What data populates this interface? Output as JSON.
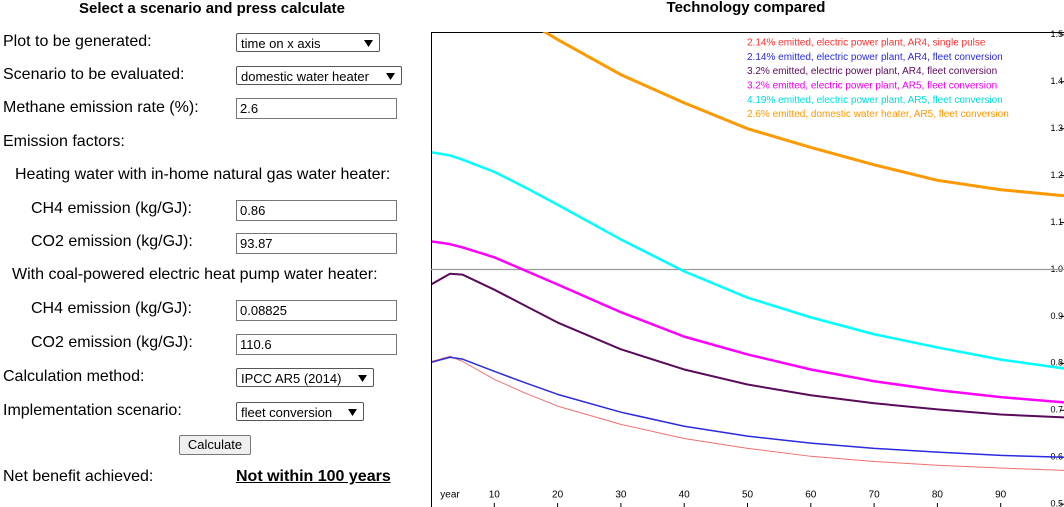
{
  "form": {
    "title": "Select a scenario and press calculate",
    "fields": [
      {
        "label": "Plot to be generated:",
        "value": "time on x axis"
      },
      {
        "label": "Scenario to be evaluated:",
        "value": "domestic water heater"
      },
      {
        "label": "Methane emission rate (%):",
        "value": "2.6"
      }
    ],
    "section": "Emission factors:",
    "subsections": [
      {
        "title": "Heating water with in-home natural gas water heater:",
        "fields": [
          {
            "label": "CH4 emission (kg/GJ):",
            "value": "0.86"
          },
          {
            "label": "CO2 emission (kg/GJ):",
            "value": "93.87"
          }
        ]
      },
      {
        "title": "With coal-powered electric heat pump water heater:",
        "fields": [
          {
            "label": "CH4 emission (kg/GJ):",
            "value": "0.08825"
          },
          {
            "label": "CO2 emission (kg/GJ):",
            "value": "110.6"
          }
        ]
      }
    ],
    "method": {
      "label": "Calculation method:",
      "value": "IPCC AR5 (2014)"
    },
    "implementation": {
      "label": "Implementation scenario:",
      "value": "fleet conversion"
    },
    "button": "Calculate",
    "result": {
      "label": "Net benefit achieved:",
      "value": "Not within 100 years"
    }
  },
  "chart_data": {
    "type": "line",
    "title": "Technology compared",
    "x_label": "year",
    "x": [
      0,
      3,
      5,
      10,
      15,
      20,
      30,
      40,
      50,
      60,
      70,
      80,
      90,
      100
    ],
    "xlim": [
      0,
      100
    ],
    "xticks": [
      10,
      20,
      30,
      40,
      50,
      60,
      70,
      80,
      90
    ],
    "ylim": [
      0.494,
      1.506
    ],
    "yticks": [
      0.5,
      0.6,
      0.7,
      0.8,
      0.9,
      {
        "value": 1,
        "label": "1.0"
      },
      1.1,
      1.2,
      1.3,
      1.4,
      1.5
    ],
    "reference_line": {
      "value": 1,
      "color": "#999999"
    },
    "legend": "upper right",
    "series": [
      {
        "name": "2.14% emitted, electric power plant, AR4, single pulse",
        "color": "#f07070",
        "legend_color": "#ff3030",
        "line_width": 1,
        "values": [
          0.804,
          0.815,
          0.804,
          0.766,
          0.736,
          0.709,
          0.67,
          0.64,
          0.619,
          0.602,
          0.591,
          0.583,
          0.577,
          0.572
        ]
      },
      {
        "name": "2.14% emitted, electric power plant, AR4, fleet conversion",
        "color": "#2a2ae0",
        "legend_color": "#2a2ae0",
        "line_width": 1.5,
        "values": [
          0.802,
          0.813,
          0.809,
          0.783,
          0.758,
          0.734,
          0.696,
          0.666,
          0.645,
          0.63,
          0.619,
          0.611,
          0.604,
          0.6
        ]
      },
      {
        "name": "3.2% emitted, electric power plant, AR4, fleet conversion",
        "color": "#5a0a5a",
        "legend_color": "#5a0a5a",
        "line_width": 2,
        "values": [
          0.968,
          0.991,
          0.989,
          0.957,
          0.922,
          0.887,
          0.83,
          0.787,
          0.755,
          0.732,
          0.715,
          0.702,
          0.691,
          0.685
        ]
      },
      {
        "name": "3.2% emitted, electric power plant, AR5, fleet conversion",
        "color": "#ff00ff",
        "legend_color": "#ee00ee",
        "line_width": 2.5,
        "values": [
          1.06,
          1.054,
          1.047,
          1.026,
          0.997,
          0.968,
          0.909,
          0.857,
          0.819,
          0.787,
          0.762,
          0.743,
          0.728,
          0.717
        ]
      },
      {
        "name": "4.19% emitted, electric power plant, AR5, fleet conversion",
        "color": "#00ffff",
        "legend_color": "#00dddd",
        "line_width": 2.5,
        "values": [
          1.25,
          1.243,
          1.234,
          1.208,
          1.174,
          1.138,
          1.064,
          0.996,
          0.94,
          0.898,
          0.862,
          0.834,
          0.808,
          0.789
        ]
      },
      {
        "name": "2.6% emitted, domestic water heater, AR5, fleet conversion",
        "color": "#ff9900",
        "legend_color": "#ff9900",
        "line_width": 3,
        "values": [
          null,
          null,
          null,
          null,
          1.53,
          1.49,
          1.415,
          1.355,
          1.3,
          1.26,
          1.223,
          1.19,
          1.17,
          1.157
        ]
      }
    ]
  }
}
